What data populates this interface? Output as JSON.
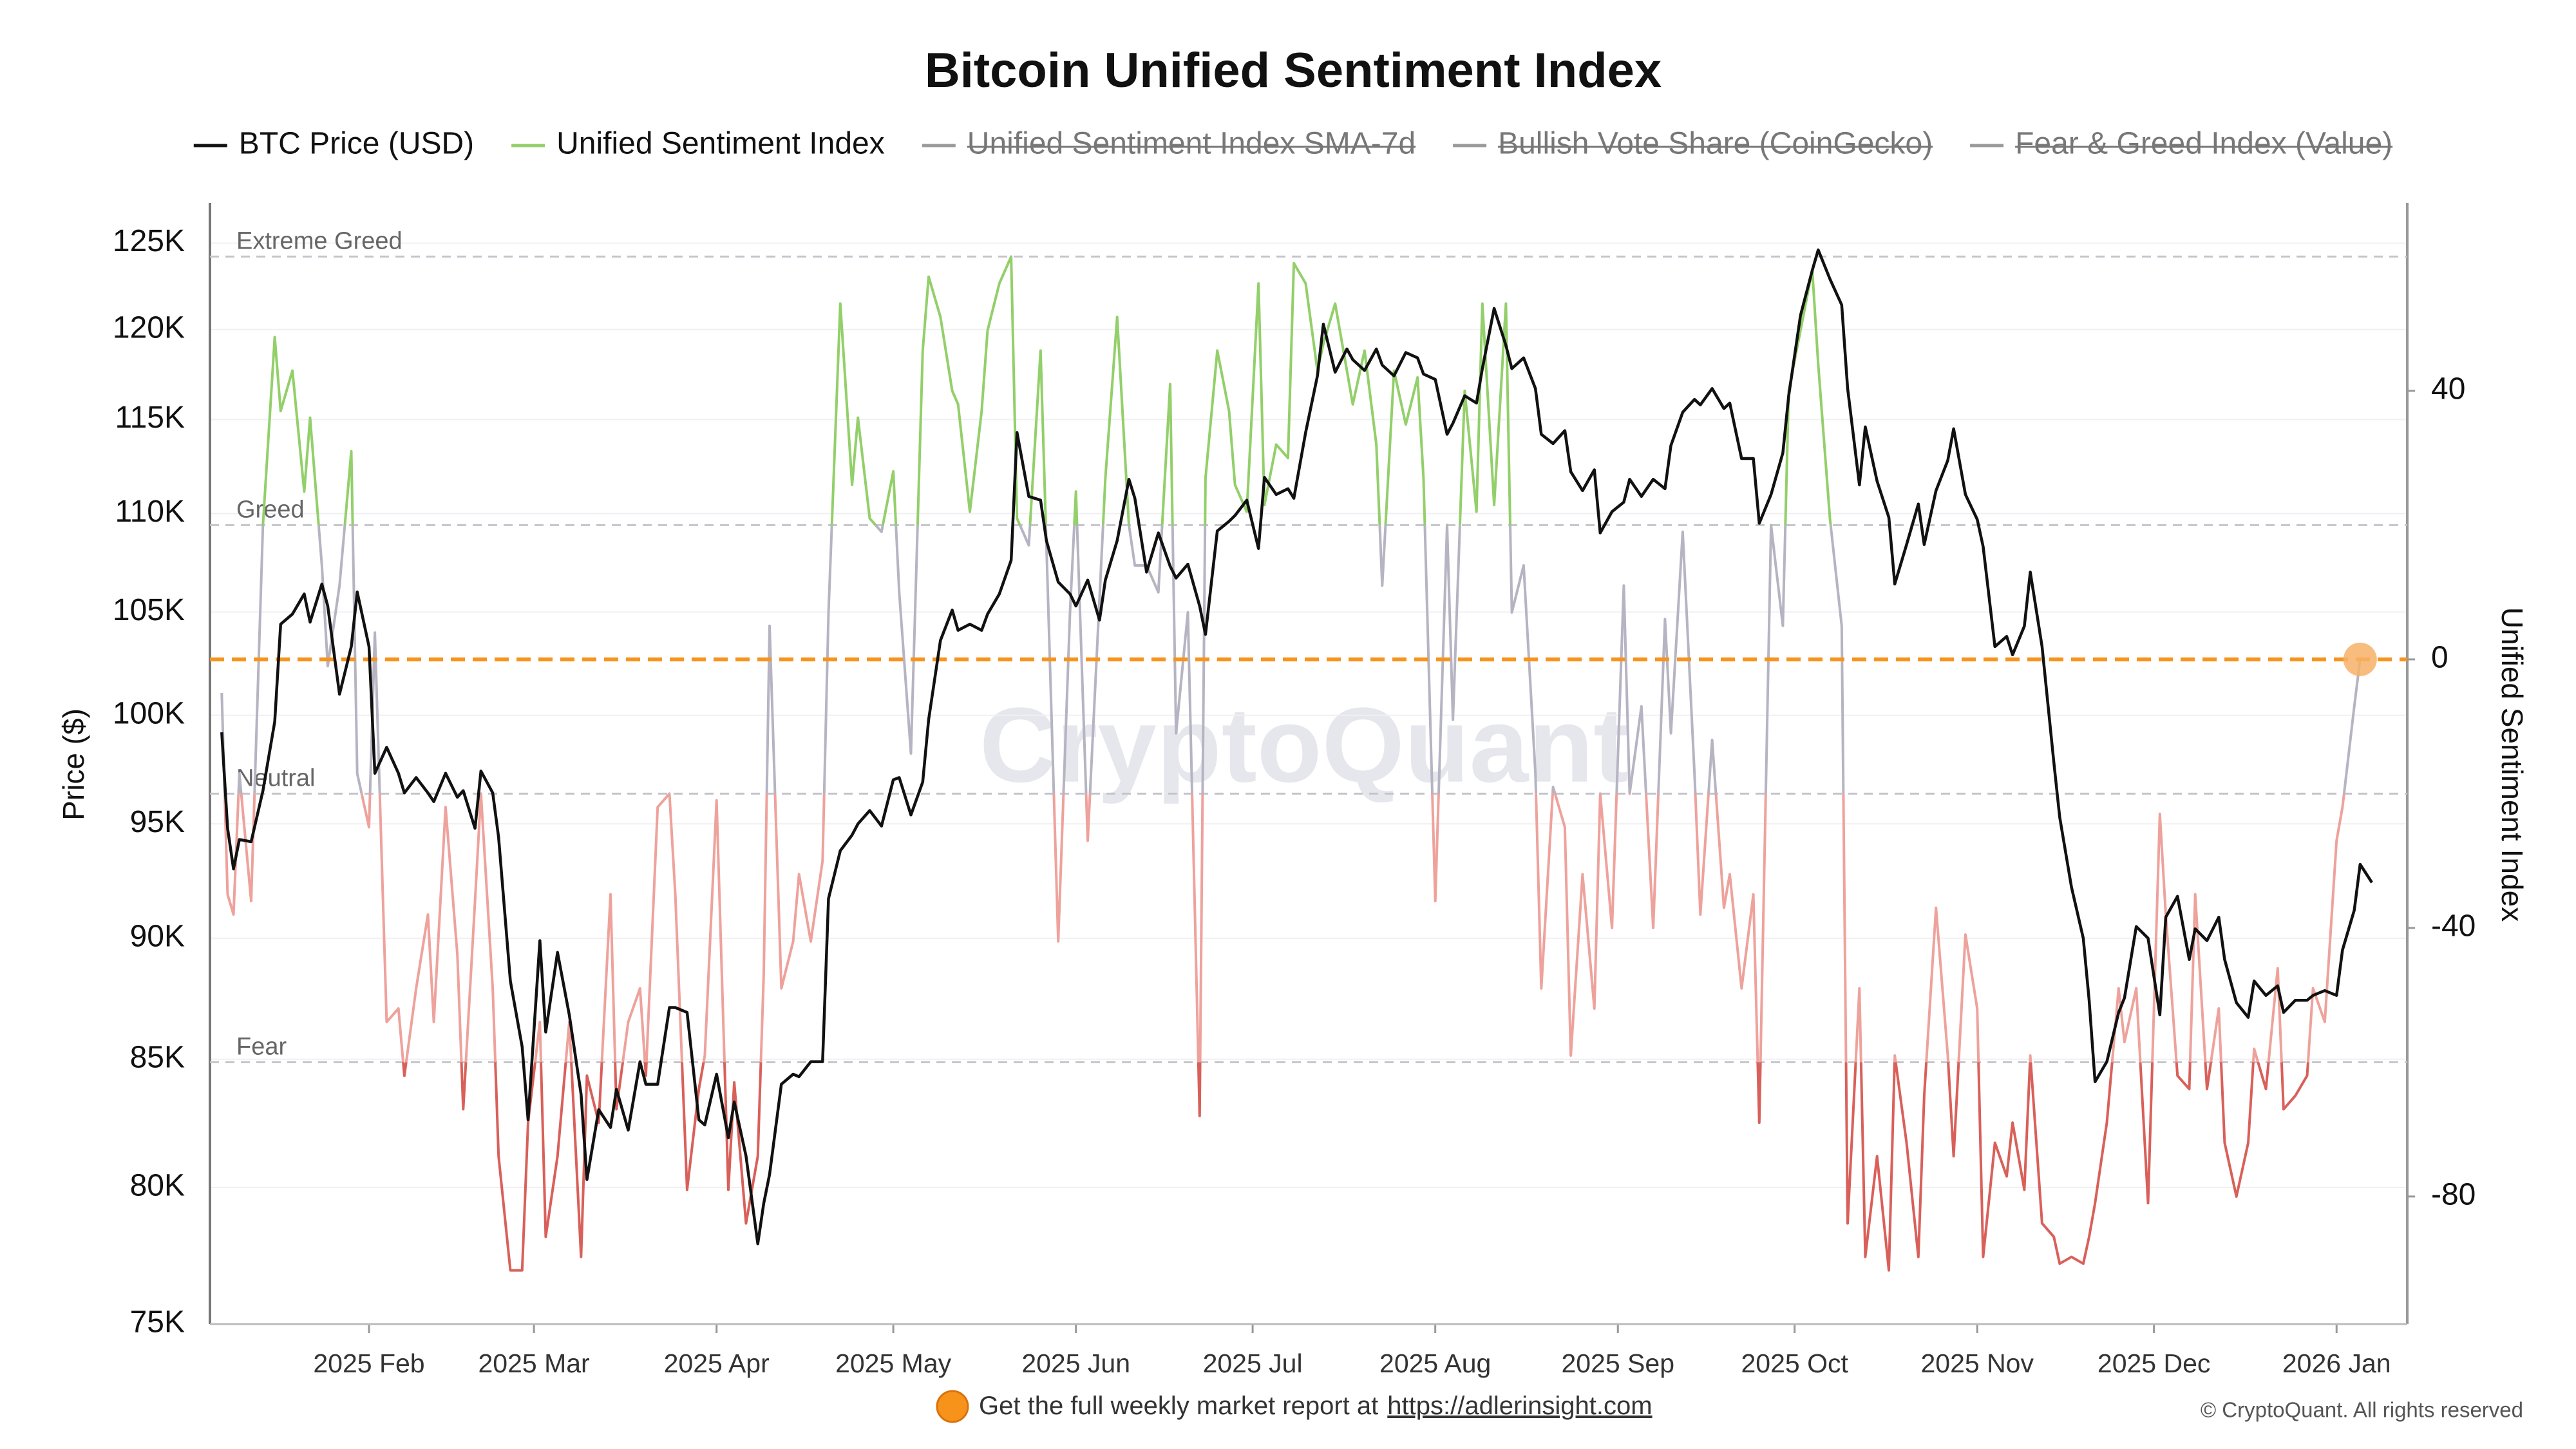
{
  "chart_data": {
    "type": "line",
    "title": "Bitcoin Unified Sentiment Index",
    "y_label": "Price ($)",
    "y2_label": "Unified Sentiment Index",
    "watermark": "CryptoQuant",
    "footer_text": "Get the full weekly market report at",
    "footer_link": "https://adlerinsight.com",
    "copyright": "© CryptoQuant. All rights reserved",
    "log_y": true,
    "grid": true,
    "xlim": [
      4,
      377
    ],
    "xticks": [
      {
        "value": 31,
        "label": "2025 Feb"
      },
      {
        "value": 59,
        "label": "2025 Mar"
      },
      {
        "value": 90,
        "label": "2025 Apr"
      },
      {
        "value": 120,
        "label": "2025 May"
      },
      {
        "value": 151,
        "label": "2025 Jun"
      },
      {
        "value": 181,
        "label": "2025 Jul"
      },
      {
        "value": 212,
        "label": "2025 Aug"
      },
      {
        "value": 243,
        "label": "2025 Sep"
      },
      {
        "value": 273,
        "label": "2025 Oct"
      },
      {
        "value": 304,
        "label": "2025 Nov"
      },
      {
        "value": 334,
        "label": "2025 Dec"
      },
      {
        "value": 365,
        "label": "2026 Jan"
      }
    ],
    "ylim": [
      75000,
      127400
    ],
    "yticks": [
      {
        "value": 75000,
        "label": "75K"
      },
      {
        "value": 80000,
        "label": "80K"
      },
      {
        "value": 85000,
        "label": "85K"
      },
      {
        "value": 90000,
        "label": "90K"
      },
      {
        "value": 95000,
        "label": "95K"
      },
      {
        "value": 100000,
        "label": "100K"
      },
      {
        "value": 105000,
        "label": "105K"
      },
      {
        "value": 110000,
        "label": "110K"
      },
      {
        "value": 115000,
        "label": "115K"
      },
      {
        "value": 120000,
        "label": "120K"
      },
      {
        "value": 125000,
        "label": "125K"
      }
    ],
    "y2lim": [
      -99,
      68
    ],
    "y2ticks": [
      -80,
      -40,
      0,
      40
    ],
    "zones": [
      {
        "label": "Extreme Greed",
        "value": 60
      },
      {
        "label": "Greed",
        "value": 20,
        "line_color_above": "#93cf6a"
      },
      {
        "label": "Neutral",
        "value": -20,
        "line_color_above": "#b6b4c2"
      },
      {
        "label": "Fear",
        "value": -60,
        "line_color_above": "#eea29c",
        "line_color_below": "#d9605a"
      }
    ],
    "reference_line": {
      "value": 0,
      "color": "#f7931a"
    },
    "x": [
      6,
      7,
      8,
      9,
      11,
      13,
      15,
      16,
      18,
      20,
      21,
      23,
      24,
      26,
      28,
      29,
      31,
      32,
      34,
      36,
      37,
      39,
      41,
      42,
      44,
      46,
      47,
      49,
      50,
      52,
      53,
      55,
      57,
      58,
      60,
      61,
      63,
      65,
      67,
      68,
      70,
      72,
      73,
      75,
      77,
      78,
      80,
      82,
      83,
      85,
      87,
      88,
      90,
      92,
      93,
      95,
      97,
      98,
      99,
      101,
      103,
      104,
      106,
      108,
      109,
      111,
      113,
      114,
      116,
      118,
      120,
      121,
      123,
      125,
      126,
      128,
      130,
      131,
      133,
      135,
      136,
      138,
      140,
      141,
      143,
      145,
      146,
      148,
      150,
      151,
      153,
      155,
      156,
      158,
      160,
      161,
      163,
      165,
      167,
      168,
      170,
      172,
      173,
      175,
      177,
      178,
      180,
      182,
      183,
      185,
      187,
      188,
      190,
      192,
      193,
      195,
      197,
      198,
      200,
      202,
      203,
      205,
      207,
      209,
      210,
      212,
      214,
      215,
      217,
      219,
      220,
      222,
      224,
      225,
      227,
      229,
      230,
      232,
      234,
      235,
      237,
      239,
      240,
      242,
      244,
      245,
      247,
      249,
      251,
      252,
      254,
      256,
      257,
      259,
      261,
      262,
      264,
      266,
      267,
      269,
      271,
      272,
      274,
      276,
      277,
      279,
      281,
      282,
      284,
      285,
      287,
      289,
      290,
      292,
      294,
      295,
      297,
      299,
      300,
      302,
      304,
      305,
      307,
      309,
      310,
      312,
      313,
      315,
      317,
      318,
      320,
      322,
      323,
      324,
      326,
      328,
      329,
      331,
      333,
      335,
      336,
      338,
      340,
      341,
      343,
      345,
      346,
      348,
      350,
      351,
      353,
      355,
      356,
      358,
      360,
      361,
      363,
      365,
      366,
      368,
      369,
      371
    ],
    "series": [
      {
        "name": "BTC Price (USD)",
        "color": "#111111",
        "axis": "y",
        "visible": true,
        "values": [
          99200,
          94800,
          93000,
          94300,
          94200,
          96500,
          99700,
          104400,
          104900,
          105900,
          104500,
          106400,
          105300,
          101000,
          103300,
          106000,
          103300,
          97300,
          98500,
          97300,
          96400,
          97100,
          96400,
          96000,
          97300,
          96200,
          96500,
          94800,
          97400,
          96400,
          94400,
          88200,
          85500,
          82600,
          89900,
          86100,
          89400,
          86800,
          83600,
          80300,
          83000,
          82300,
          83800,
          82200,
          84900,
          84000,
          84000,
          87100,
          87100,
          86900,
          82600,
          82400,
          84400,
          81900,
          83300,
          81200,
          77900,
          79400,
          80500,
          84000,
          84400,
          84300,
          84900,
          84900,
          91700,
          93800,
          94500,
          95000,
          95600,
          94900,
          97000,
          97100,
          95400,
          96900,
          99800,
          103600,
          105100,
          104100,
          104400,
          104100,
          104900,
          105900,
          107600,
          114300,
          110900,
          110700,
          108600,
          106500,
          105900,
          105300,
          106600,
          104600,
          106600,
          108600,
          111800,
          110800,
          107000,
          109000,
          107300,
          106700,
          107400,
          105300,
          103900,
          109100,
          109600,
          109900,
          110700,
          108200,
          111900,
          111000,
          111300,
          110800,
          114300,
          117400,
          120300,
          117600,
          118900,
          118300,
          117700,
          118900,
          118000,
          117400,
          118700,
          118400,
          117500,
          117200,
          114200,
          114800,
          116300,
          115900,
          117800,
          121200,
          119100,
          117800,
          118400,
          116700,
          114200,
          113700,
          114400,
          112200,
          111200,
          112300,
          109000,
          110100,
          110600,
          111800,
          110900,
          111800,
          111300,
          113600,
          115400,
          116100,
          115800,
          116700,
          115600,
          115900,
          112900,
          112900,
          109500,
          111000,
          113200,
          116300,
          120800,
          123400,
          124600,
          122900,
          121400,
          116700,
          111500,
          114600,
          111700,
          109800,
          106400,
          108400,
          110500,
          108400,
          111200,
          112800,
          114500,
          111000,
          109700,
          108300,
          103300,
          103800,
          102900,
          104300,
          107000,
          103300,
          97800,
          95300,
          92200,
          90000,
          87400,
          84100,
          84900,
          86900,
          87500,
          90500,
          90000,
          86800,
          90900,
          91800,
          89100,
          90400,
          89900,
          90900,
          89100,
          87300,
          86700,
          88200,
          87600,
          88000,
          86900,
          87400,
          87400,
          87600,
          87800,
          87600,
          89500,
          91200,
          93200,
          92400
        ]
      },
      {
        "name": "Unified Sentiment Index",
        "color": "#93cf6a",
        "axis": "y2",
        "visible": true,
        "end_marker_color": "#f7b267",
        "values": [
          -5,
          -35,
          -38,
          -17,
          -36,
          20,
          48,
          37,
          43,
          25,
          36,
          14,
          -1,
          11,
          31,
          -17,
          -25,
          4,
          -54,
          -52,
          -62,
          -49,
          -38,
          -54,
          -22,
          -44,
          -67,
          -36,
          -20,
          -49,
          -74,
          -91,
          -91,
          -69,
          -54,
          -86,
          -74,
          -54,
          -89,
          -62,
          -69,
          -35,
          -67,
          -54,
          -49,
          -62,
          -22,
          -20,
          -35,
          -79,
          -64,
          -59,
          -21,
          -79,
          -63,
          -84,
          -74,
          -47,
          5,
          -49,
          -42,
          -32,
          -42,
          -30,
          7,
          53,
          26,
          36,
          21,
          19,
          28,
          10,
          -14,
          46,
          57,
          51,
          40,
          38,
          22,
          37,
          49,
          56,
          60,
          21,
          17,
          46,
          17,
          -42,
          7,
          25,
          -27,
          9,
          27,
          51,
          20,
          14,
          14,
          10,
          41,
          -11,
          7,
          -68,
          27,
          46,
          37,
          26,
          22,
          56,
          23,
          32,
          30,
          59,
          56,
          43,
          47,
          53,
          43,
          38,
          46,
          32,
          11,
          43,
          35,
          42,
          27,
          -36,
          20,
          -9,
          40,
          22,
          53,
          23,
          53,
          7,
          14,
          -17,
          -49,
          -19,
          -25,
          -59,
          -32,
          -52,
          -20,
          -40,
          11,
          -20,
          -7,
          -40,
          6,
          -11,
          19,
          -17,
          -38,
          -12,
          -37,
          -32,
          -49,
          -35,
          -69,
          20,
          5,
          40,
          49,
          58,
          44,
          21,
          5,
          -84,
          -49,
          -89,
          -74,
          -91,
          -59,
          -72,
          -89,
          -65,
          -37,
          -59,
          -74,
          -41,
          -52,
          -89,
          -72,
          -77,
          -69,
          -79,
          -59,
          -84,
          -86,
          -90,
          -89,
          -90,
          -86,
          -81,
          -69,
          -49,
          -57,
          -49,
          -81,
          -23,
          -38,
          -62,
          -64,
          -35,
          -64,
          -52,
          -72,
          -80,
          -72,
          -58,
          -64,
          -46,
          -67,
          -65,
          -62,
          -49,
          -54,
          -27,
          -22,
          -7,
          0,
          null
        ]
      },
      {
        "name": "Unified Sentiment Index SMA-7d",
        "color": "#9a9aa8",
        "visible": false
      },
      {
        "name": "Bullish Vote Share (CoinGecko)",
        "color": "#9a9aa8",
        "visible": false
      },
      {
        "name": "Fear & Greed Index (Value)",
        "color": "#9a9aa8",
        "visible": false
      }
    ]
  }
}
